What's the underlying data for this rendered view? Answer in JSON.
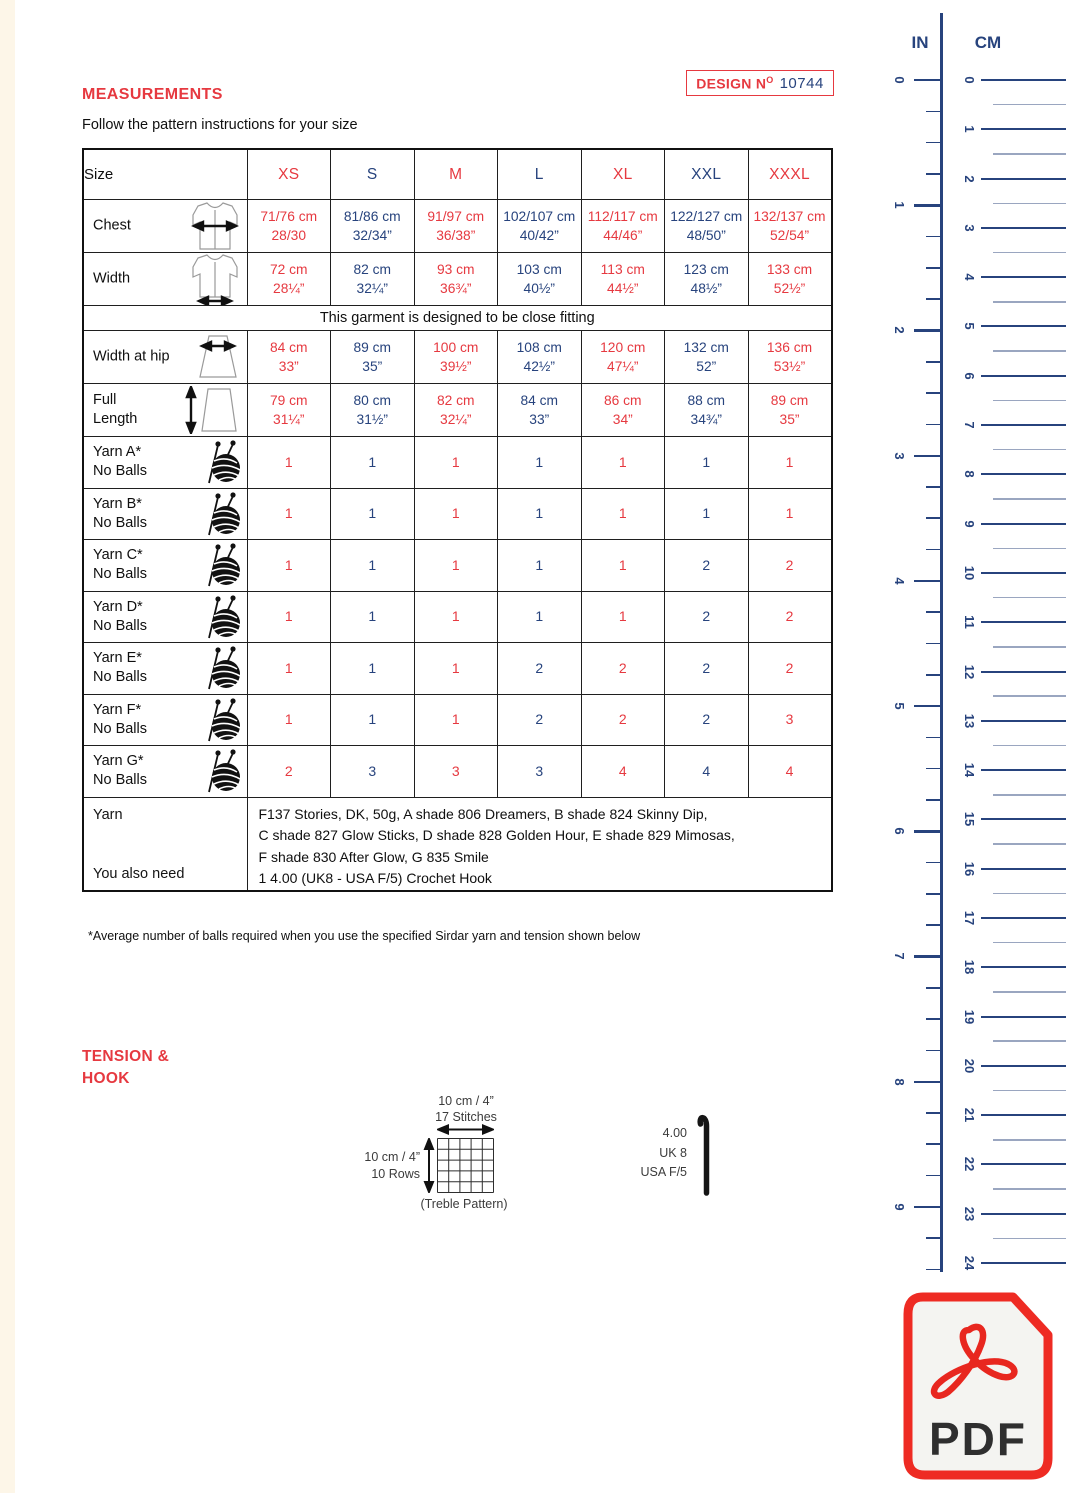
{
  "design": {
    "prefix": "DESIGN N",
    "sup": "O",
    "number": "10744"
  },
  "measurements": {
    "title": "MEASUREMENTS",
    "subtitle": "Follow the pattern instructions for your size",
    "size_header": "Size",
    "sizes": [
      "XS",
      "S",
      "M",
      "L",
      "XL",
      "XXL",
      "XXXL"
    ],
    "column_colors": [
      "red",
      "blue",
      "red",
      "blue",
      "red",
      "blue",
      "red"
    ],
    "rows": [
      {
        "type": "data",
        "label": "Chest",
        "icon": "garment-chest-icon",
        "cells": [
          [
            "71/76 cm",
            "28/30"
          ],
          [
            "81/86 cm",
            "32/34”"
          ],
          [
            "91/97 cm",
            "36/38”"
          ],
          [
            "102/107 cm",
            "40/42”"
          ],
          [
            "112/117 cm",
            "44/46”"
          ],
          [
            "122/127 cm",
            "48/50”"
          ],
          [
            "132/137 cm",
            "52/54”"
          ]
        ]
      },
      {
        "type": "data",
        "label": "Width",
        "icon": "garment-width-icon",
        "cells": [
          [
            "72 cm",
            "28¼”"
          ],
          [
            "82 cm",
            "32¼”"
          ],
          [
            "93 cm",
            "36¾”"
          ],
          [
            "103 cm",
            "40½”"
          ],
          [
            "113 cm",
            "44½”"
          ],
          [
            "123 cm",
            "48½”"
          ],
          [
            "133 cm",
            "52½”"
          ]
        ]
      },
      {
        "type": "note",
        "text": "This garment is designed to be close fitting"
      },
      {
        "type": "data",
        "label": "Width at hip",
        "icon": "hip-width-icon",
        "cells": [
          [
            "84 cm",
            "33”"
          ],
          [
            "89 cm",
            "35”"
          ],
          [
            "100 cm",
            "39½”"
          ],
          [
            "108 cm",
            "42½”"
          ],
          [
            "120 cm",
            "47¼”"
          ],
          [
            "132 cm",
            "52”"
          ],
          [
            "136 cm",
            "53½”"
          ]
        ]
      },
      {
        "type": "data",
        "label": "Full\nLength",
        "icon": "full-length-icon",
        "cells": [
          [
            "79 cm",
            "31¼”"
          ],
          [
            "80 cm",
            "31½”"
          ],
          [
            "82 cm",
            "32¼”"
          ],
          [
            "84 cm",
            "33”"
          ],
          [
            "86 cm",
            "34”"
          ],
          [
            "88 cm",
            "34¾”"
          ],
          [
            "89 cm",
            "35”"
          ]
        ]
      },
      {
        "type": "data",
        "label": "Yarn A*\nNo Balls",
        "icon": "yarn-ball-icon",
        "cells": [
          "1",
          "1",
          "1",
          "1",
          "1",
          "1",
          "1"
        ]
      },
      {
        "type": "data",
        "label": "Yarn B*\nNo Balls",
        "icon": "yarn-ball-icon",
        "cells": [
          "1",
          "1",
          "1",
          "1",
          "1",
          "1",
          "1"
        ]
      },
      {
        "type": "data",
        "label": "Yarn C*\nNo Balls",
        "icon": "yarn-ball-icon",
        "cells": [
          "1",
          "1",
          "1",
          "1",
          "1",
          "2",
          "2"
        ]
      },
      {
        "type": "data",
        "label": "Yarn D*\nNo Balls",
        "icon": "yarn-ball-icon",
        "cells": [
          "1",
          "1",
          "1",
          "1",
          "1",
          "2",
          "2"
        ]
      },
      {
        "type": "data",
        "label": "Yarn E*\nNo Balls",
        "icon": "yarn-ball-icon",
        "cells": [
          "1",
          "1",
          "1",
          "2",
          "2",
          "2",
          "2"
        ]
      },
      {
        "type": "data",
        "label": "Yarn F*\nNo Balls",
        "icon": "yarn-ball-icon",
        "cells": [
          "1",
          "1",
          "1",
          "2",
          "2",
          "2",
          "3"
        ]
      },
      {
        "type": "data",
        "label": "Yarn G*\nNo Balls",
        "icon": "yarn-ball-icon",
        "cells": [
          "2",
          "3",
          "3",
          "3",
          "4",
          "4",
          "4"
        ]
      }
    ],
    "footer": {
      "yarn_label": "Yarn",
      "yarn_lines": [
        "F137 Stories, DK, 50g, A shade 806 Dreamers, B shade 824 Skinny Dip,",
        "C shade 827 Glow Sticks, D shade 828 Golden Hour, E shade 829 Mimosas,",
        "F shade 830 After Glow, G 835 Smile"
      ],
      "also_label": "You also need",
      "also_text": "1 4.00 (UK8 - USA F/5) Crochet Hook"
    },
    "footnote": "*Average number of balls required when you use the specified Sirdar yarn and tension shown below"
  },
  "tension": {
    "title_line1": "TENSION &",
    "title_line2": "HOOK",
    "top_label_1": "10 cm / 4”",
    "top_label_2": "17 Stitches",
    "left_label_1": "10 cm / 4”",
    "left_label_2": "10 Rows",
    "caption": "(Treble Pattern)",
    "hook_labels": [
      "4.00",
      "UK 8",
      "USA F/5"
    ]
  },
  "ruler": {
    "in_label": "IN",
    "cm_label": "CM",
    "in_min": 0,
    "in_max": 9,
    "cm_min": 0,
    "cm_max": 24
  },
  "pdf": {
    "label": "PDF"
  },
  "colors": {
    "red": "#e63940",
    "navy": "#27437d",
    "pdf_red": "#ee2b23",
    "cream": "#fdf6e8"
  }
}
